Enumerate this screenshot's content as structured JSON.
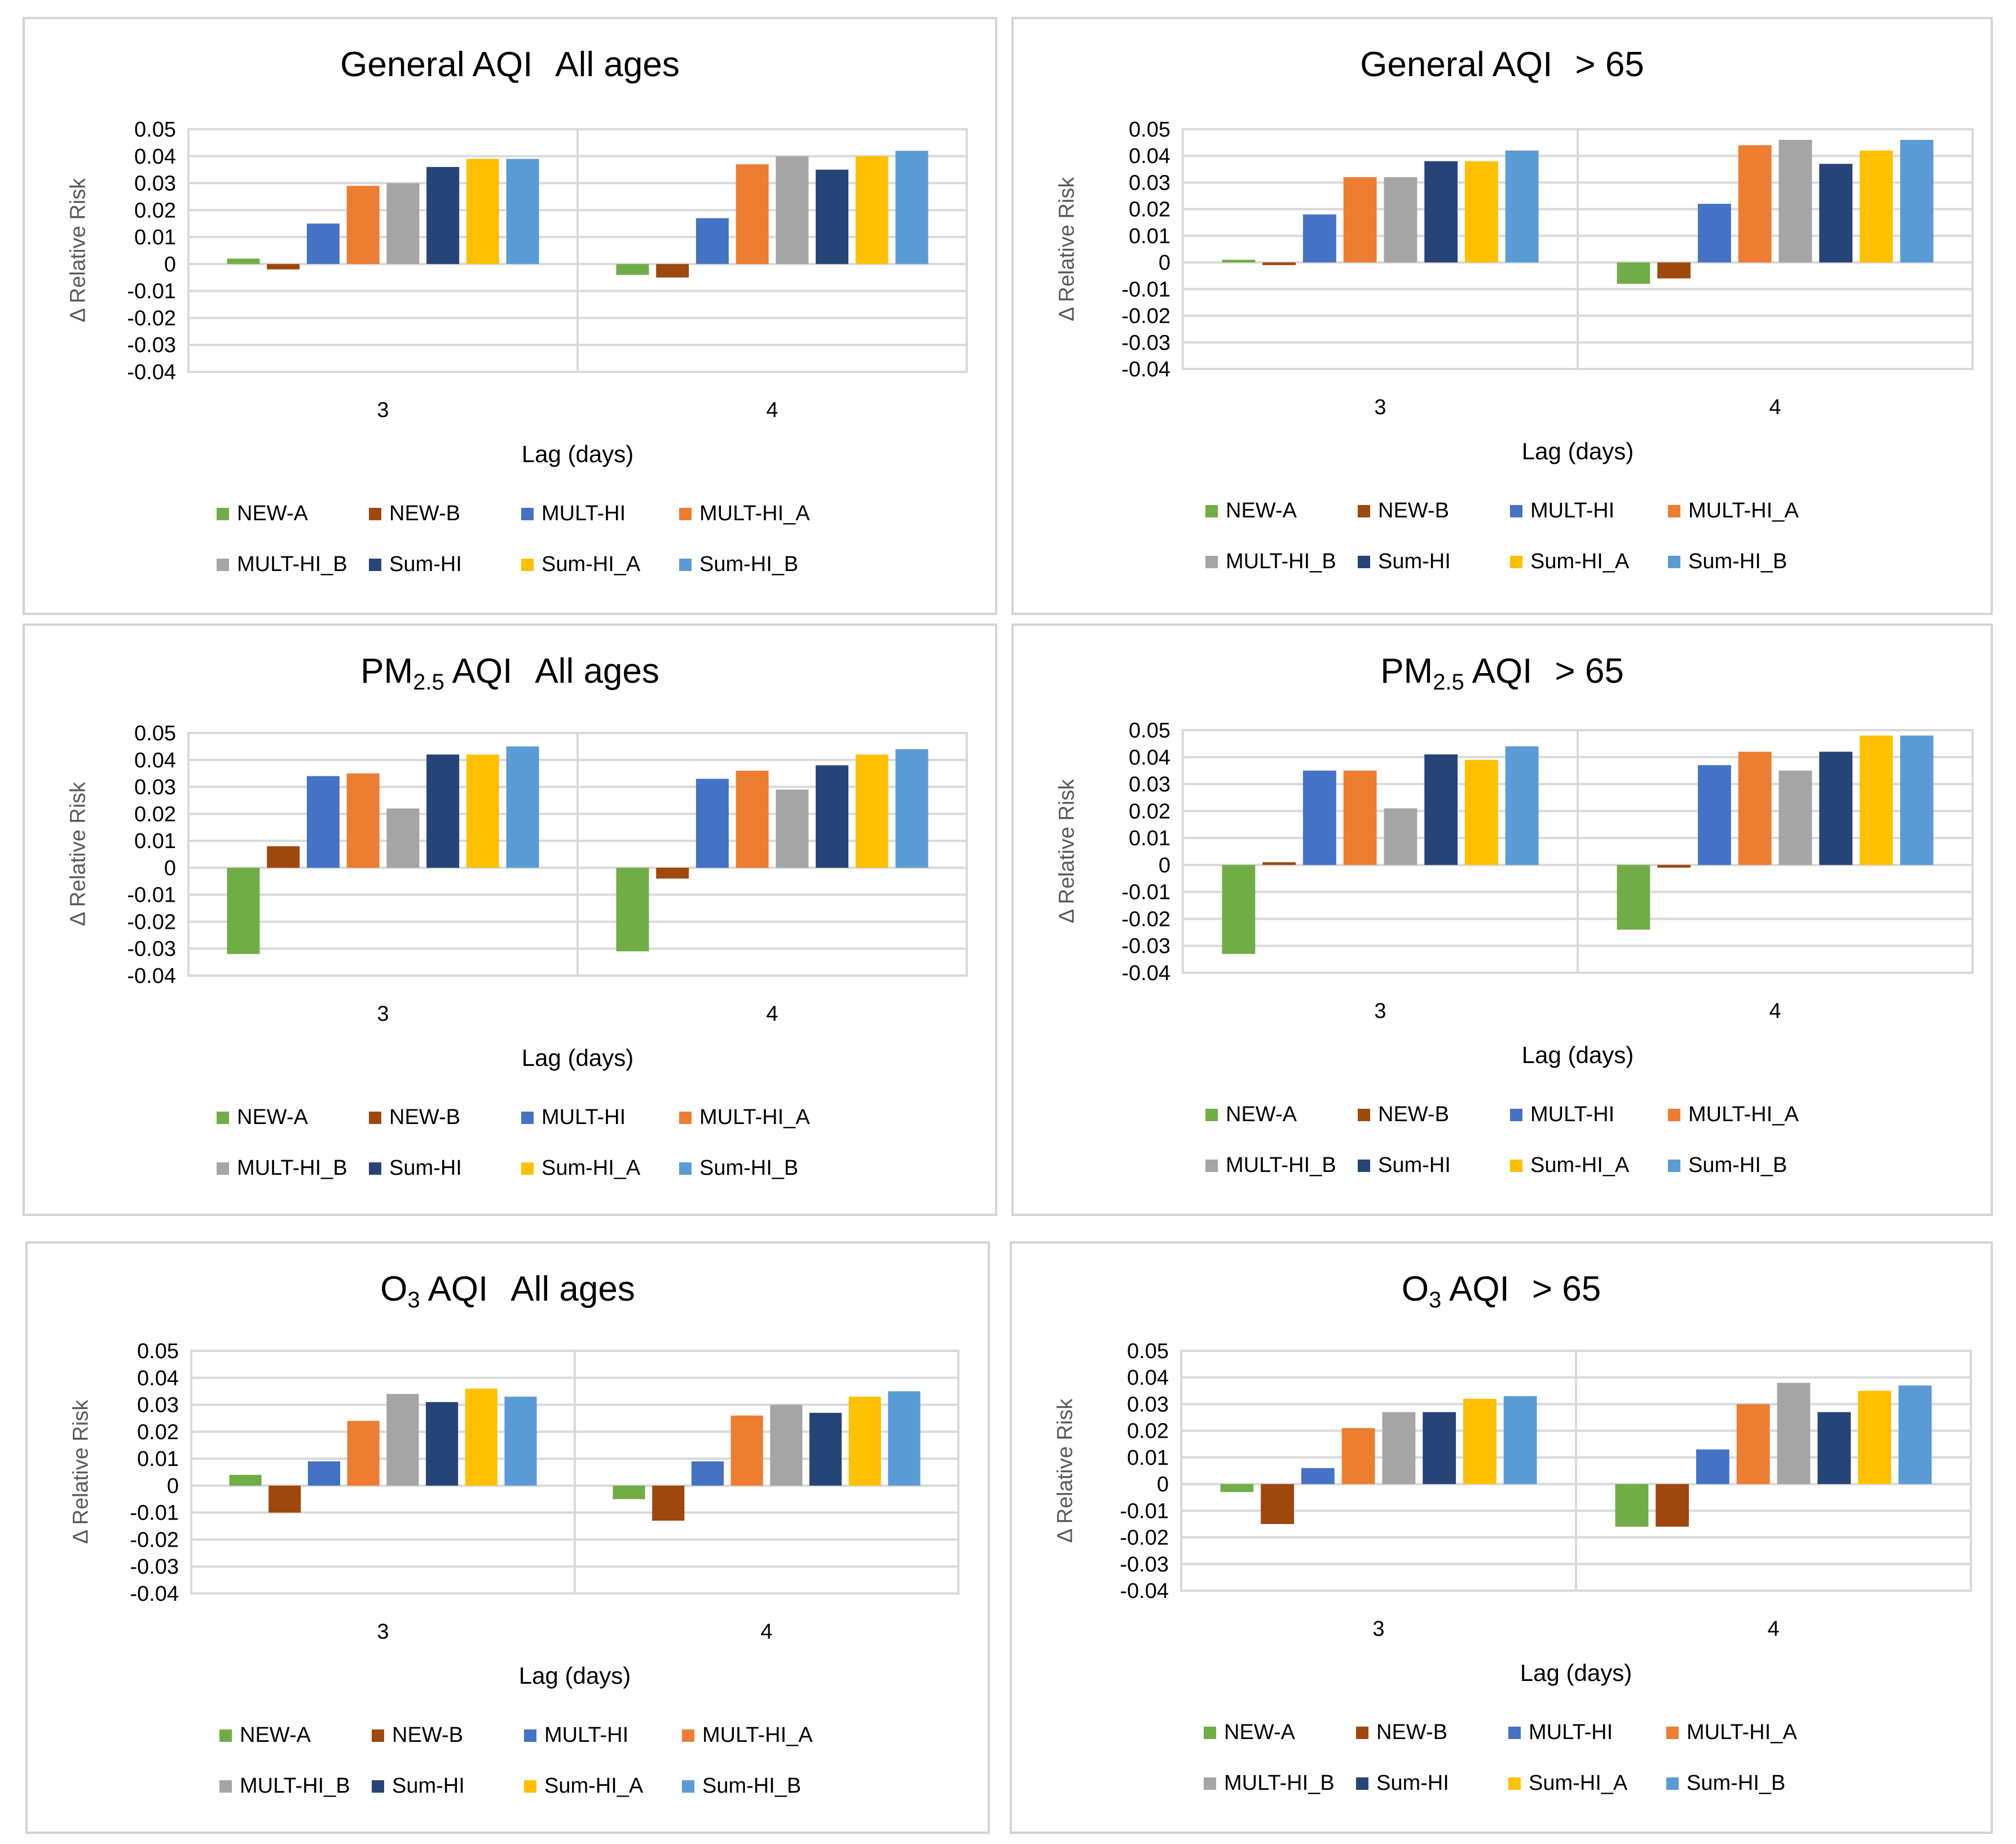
{
  "colors": {
    "NEW-A": "#70ad47",
    "NEW-B": "#9e480e",
    "MULT-HI": "#4472c4",
    "MULT-HI_A": "#ed7d31",
    "MULT-HI_B": "#a5a5a5",
    "Sum-HI": "#264478",
    "Sum-HI_A": "#ffc000",
    "Sum-HI_B": "#5b9bd5",
    "grid": "#d9d9d9",
    "panel_border": "#d4d4d4"
  },
  "chart_data": [
    {
      "type": "bar",
      "title_main": "General AQI",
      "title_sub": "",
      "title_rest": "",
      "title_suffix": "All ages",
      "xlabel": "Lag (days)",
      "ylabel": "Δ Relative Risk",
      "ylim": [
        -0.04,
        0.05
      ],
      "yticks": [
        "0.05",
        "0.04",
        "0.03",
        "0.02",
        "0.01",
        "0",
        "-0.01",
        "-0.02",
        "-0.03",
        "-0.04"
      ],
      "categories": [
        "3",
        "4"
      ],
      "series": [
        {
          "name": "NEW-A",
          "values": [
            0.002,
            -0.004
          ]
        },
        {
          "name": "NEW-B",
          "values": [
            -0.002,
            -0.005
          ]
        },
        {
          "name": "MULT-HI",
          "values": [
            0.015,
            0.017
          ]
        },
        {
          "name": "MULT-HI_A",
          "values": [
            0.029,
            0.037
          ]
        },
        {
          "name": "MULT-HI_B",
          "values": [
            0.03,
            0.04
          ]
        },
        {
          "name": "Sum-HI",
          "values": [
            0.036,
            0.035
          ]
        },
        {
          "name": "Sum-HI_A",
          "values": [
            0.039,
            0.04
          ]
        },
        {
          "name": "Sum-HI_B",
          "values": [
            0.039,
            0.042
          ]
        }
      ]
    },
    {
      "type": "bar",
      "title_main": "General AQI",
      "title_sub": "",
      "title_rest": "",
      "title_suffix": "> 65",
      "xlabel": "Lag (days)",
      "ylabel": "Δ Relative Risk",
      "ylim": [
        -0.04,
        0.05
      ],
      "yticks": [
        "0.05",
        "0.04",
        "0.03",
        "0.02",
        "0.01",
        "0",
        "-0.01",
        "-0.02",
        "-0.03",
        "-0.04"
      ],
      "categories": [
        "3",
        "4"
      ],
      "series": [
        {
          "name": "NEW-A",
          "values": [
            0.001,
            -0.008
          ]
        },
        {
          "name": "NEW-B",
          "values": [
            -0.001,
            -0.006
          ]
        },
        {
          "name": "MULT-HI",
          "values": [
            0.018,
            0.022
          ]
        },
        {
          "name": "MULT-HI_A",
          "values": [
            0.032,
            0.044
          ]
        },
        {
          "name": "MULT-HI_B",
          "values": [
            0.032,
            0.046
          ]
        },
        {
          "name": "Sum-HI",
          "values": [
            0.038,
            0.037
          ]
        },
        {
          "name": "Sum-HI_A",
          "values": [
            0.038,
            0.042
          ]
        },
        {
          "name": "Sum-HI_B",
          "values": [
            0.042,
            0.046
          ]
        }
      ]
    },
    {
      "type": "bar",
      "title_main": "PM",
      "title_sub": "2.5",
      "title_rest": " AQI",
      "title_suffix": "All ages",
      "xlabel": "Lag (days)",
      "ylabel": "Δ Relative Risk",
      "ylim": [
        -0.04,
        0.05
      ],
      "yticks": [
        "0.05",
        "0.04",
        "0.03",
        "0.02",
        "0.01",
        "0",
        "-0.01",
        "-0.02",
        "-0.03",
        "-0.04"
      ],
      "categories": [
        "3",
        "4"
      ],
      "series": [
        {
          "name": "NEW-A",
          "values": [
            -0.032,
            -0.031
          ]
        },
        {
          "name": "NEW-B",
          "values": [
            0.008,
            -0.004
          ]
        },
        {
          "name": "MULT-HI",
          "values": [
            0.034,
            0.033
          ]
        },
        {
          "name": "MULT-HI_A",
          "values": [
            0.035,
            0.036
          ]
        },
        {
          "name": "MULT-HI_B",
          "values": [
            0.022,
            0.029
          ]
        },
        {
          "name": "Sum-HI",
          "values": [
            0.042,
            0.038
          ]
        },
        {
          "name": "Sum-HI_A",
          "values": [
            0.042,
            0.042
          ]
        },
        {
          "name": "Sum-HI_B",
          "values": [
            0.045,
            0.044
          ]
        }
      ]
    },
    {
      "type": "bar",
      "title_main": "PM",
      "title_sub": "2.5",
      "title_rest": " AQI",
      "title_suffix": "> 65",
      "xlabel": "Lag (days)",
      "ylabel": "Δ Relative Risk",
      "ylim": [
        -0.04,
        0.05
      ],
      "yticks": [
        "0.05",
        "0.04",
        "0.03",
        "0.02",
        "0.01",
        "0",
        "-0.01",
        "-0.02",
        "-0.03",
        "-0.04"
      ],
      "categories": [
        "3",
        "4"
      ],
      "series": [
        {
          "name": "NEW-A",
          "values": [
            -0.033,
            -0.024
          ]
        },
        {
          "name": "NEW-B",
          "values": [
            0.001,
            -0.001
          ]
        },
        {
          "name": "MULT-HI",
          "values": [
            0.035,
            0.037
          ]
        },
        {
          "name": "MULT-HI_A",
          "values": [
            0.035,
            0.042
          ]
        },
        {
          "name": "MULT-HI_B",
          "values": [
            0.021,
            0.035
          ]
        },
        {
          "name": "Sum-HI",
          "values": [
            0.041,
            0.042
          ]
        },
        {
          "name": "Sum-HI_A",
          "values": [
            0.039,
            0.048
          ]
        },
        {
          "name": "Sum-HI_B",
          "values": [
            0.044,
            0.048
          ]
        }
      ]
    },
    {
      "type": "bar",
      "title_main": "O",
      "title_sub": "3",
      "title_rest": " AQI",
      "title_suffix": "All ages",
      "xlabel": "Lag (days)",
      "ylabel": "Δ Relative Risk",
      "ylim": [
        -0.04,
        0.05
      ],
      "yticks": [
        "0.05",
        "0.04",
        "0.03",
        "0.02",
        "0.01",
        "0",
        "-0.01",
        "-0.02",
        "-0.03",
        "-0.04"
      ],
      "categories": [
        "3",
        "4"
      ],
      "series": [
        {
          "name": "NEW-A",
          "values": [
            0.004,
            -0.005
          ]
        },
        {
          "name": "NEW-B",
          "values": [
            -0.01,
            -0.013
          ]
        },
        {
          "name": "MULT-HI",
          "values": [
            0.009,
            0.009
          ]
        },
        {
          "name": "MULT-HI_A",
          "values": [
            0.024,
            0.026
          ]
        },
        {
          "name": "MULT-HI_B",
          "values": [
            0.034,
            0.03
          ]
        },
        {
          "name": "Sum-HI",
          "values": [
            0.031,
            0.027
          ]
        },
        {
          "name": "Sum-HI_A",
          "values": [
            0.036,
            0.033
          ]
        },
        {
          "name": "Sum-HI_B",
          "values": [
            0.033,
            0.035
          ]
        }
      ]
    },
    {
      "type": "bar",
      "title_main": "O",
      "title_sub": "3",
      "title_rest": " AQI",
      "title_suffix": "> 65",
      "xlabel": "Lag (days)",
      "ylabel": "Δ Relative Risk",
      "ylim": [
        -0.04,
        0.05
      ],
      "yticks": [
        "0.05",
        "0.04",
        "0.03",
        "0.02",
        "0.01",
        "0",
        "-0.01",
        "-0.02",
        "-0.03",
        "-0.04"
      ],
      "categories": [
        "3",
        "4"
      ],
      "series": [
        {
          "name": "NEW-A",
          "values": [
            -0.003,
            -0.016
          ]
        },
        {
          "name": "NEW-B",
          "values": [
            -0.015,
            -0.016
          ]
        },
        {
          "name": "MULT-HI",
          "values": [
            0.006,
            0.013
          ]
        },
        {
          "name": "MULT-HI_A",
          "values": [
            0.021,
            0.03
          ]
        },
        {
          "name": "MULT-HI_B",
          "values": [
            0.027,
            0.038
          ]
        },
        {
          "name": "Sum-HI",
          "values": [
            0.027,
            0.027
          ]
        },
        {
          "name": "Sum-HI_A",
          "values": [
            0.032,
            0.035
          ]
        },
        {
          "name": "Sum-HI_B",
          "values": [
            0.033,
            0.037
          ]
        }
      ]
    }
  ]
}
